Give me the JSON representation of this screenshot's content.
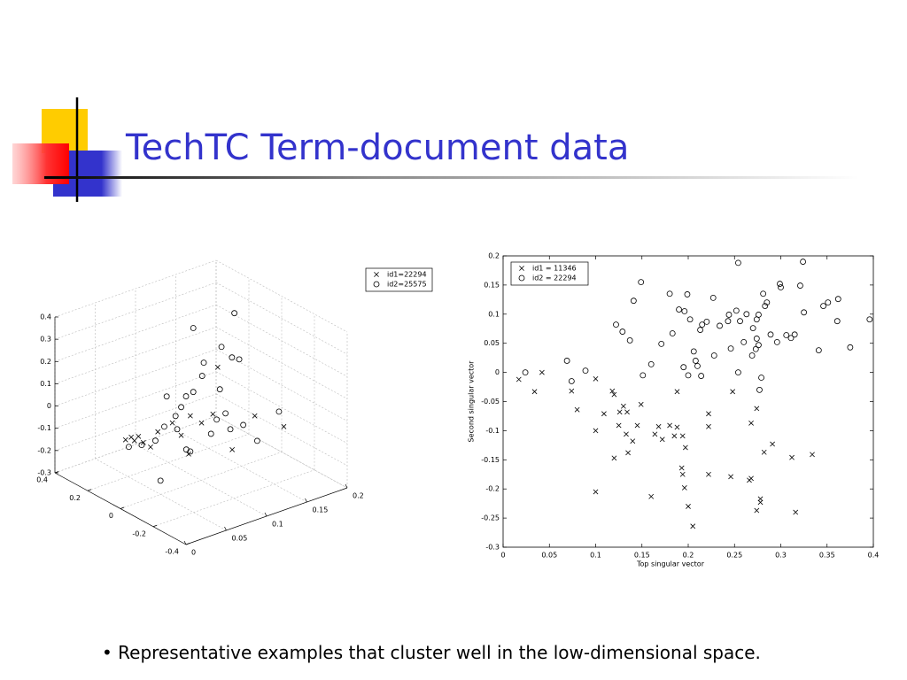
{
  "title": "TechTC Term-document data",
  "bullet": "• Representative examples that cluster well in the low-dimensional space.",
  "chart_data": [
    {
      "type": "scatter3d",
      "series": [
        {
          "name": "id1=22294",
          "marker": "x",
          "x": [
            0.2,
            0.2,
            0.2,
            0.2,
            0.2,
            0.2,
            0.2,
            0.2,
            0.2,
            -0.2,
            -0.2,
            -0.2,
            -0.2,
            -0.2,
            -0.2,
            -0.2,
            -0.2
          ],
          "y": [
            0.047,
            0.054,
            0.058,
            0.063,
            0.069,
            0.078,
            0.087,
            0.105,
            0.116,
            0.046,
            0.06,
            0.074,
            0.098,
            0.126,
            0.162,
            0.08,
            0.044
          ],
          "z": [
            -0.131,
            -0.128,
            -0.149,
            -0.136,
            -0.171,
            -0.203,
            -0.146,
            -0.129,
            -0.199,
            0.139,
            0.089,
            0.111,
            -0.079,
            0.037,
            -0.057,
            0.314,
            -0.03
          ]
        },
        {
          "name": "id2=25575",
          "marker": "o",
          "x": [
            0.2,
            0.2,
            0.2,
            0.2,
            0.2,
            0.2,
            0.2,
            -0.2,
            0.2,
            -0.2,
            -0.2,
            0.2,
            0.2,
            0.2,
            0.2,
            0.2,
            0.2,
            0.2,
            0.2,
            0.2,
            0.2,
            0.2,
            0.2,
            0.2,
            0.2,
            -0.2,
            -0.2,
            0.2
          ],
          "y": [
            0.051,
            0.067,
            0.084,
            0.095,
            0.109,
            0.116,
            0.098,
            0.009,
            0.111,
            0.041,
            0.046,
            0.131,
            0.142,
            0.122,
            0.144,
            0.153,
            0.16,
            0.166,
            0.171,
            0.177,
            0.179,
            0.188,
            0.182,
            0.164,
            0.193,
            0.129,
            0.156,
            0.131
          ],
          "z": [
            -0.168,
            -0.18,
            -0.182,
            -0.133,
            -0.103,
            -0.072,
            -0.001,
            -0.105,
            -0.165,
            -0.006,
            -0.021,
            0.264,
            0.035,
            -0.031,
            0.092,
            -0.239,
            -0.184,
            0.135,
            -0.17,
            -0.249,
            0.071,
            0.051,
            0.266,
            -0.053,
            -0.25,
            -0.079,
            0.018,
            -0.023
          ]
        }
      ],
      "xlim": [
        -0.4,
        0.4
      ],
      "xticks": [
        -0.4,
        -0.2,
        0,
        0.2,
        0.4
      ],
      "ylim": [
        0,
        0.2
      ],
      "yticks": [
        0,
        0.05,
        0.1,
        0.15,
        0.2
      ],
      "zlim": [
        -0.3,
        0.4
      ],
      "zticks": [
        -0.3,
        -0.2,
        -0.1,
        0,
        0.1,
        0.2,
        0.3,
        0.4
      ],
      "grid": true,
      "legend": "top-right"
    },
    {
      "type": "scatter",
      "x_label": "Top singular vector",
      "y_label": "Second singular vector",
      "series": [
        {
          "name": "id1 = 11346",
          "marker": "x",
          "x": [
            0.017,
            0.034,
            0.042,
            0.074,
            0.08,
            0.1,
            0.1,
            0.1,
            0.109,
            0.118,
            0.12,
            0.12,
            0.125,
            0.126,
            0.13,
            0.133,
            0.134,
            0.135,
            0.14,
            0.145,
            0.149,
            0.16,
            0.164,
            0.168,
            0.172,
            0.18,
            0.185,
            0.188,
            0.188,
            0.193,
            0.194,
            0.194,
            0.196,
            0.197,
            0.2,
            0.205,
            0.222,
            0.222,
            0.222,
            0.246,
            0.248,
            0.266,
            0.268,
            0.268,
            0.274,
            0.274,
            0.278,
            0.278,
            0.282,
            0.291,
            0.312,
            0.316,
            0.334
          ],
          "y": [
            -0.012,
            -0.033,
            0,
            -0.032,
            -0.064,
            -0.011,
            -0.1,
            -0.205,
            -0.071,
            -0.032,
            -0.038,
            -0.147,
            -0.091,
            -0.068,
            -0.058,
            -0.106,
            -0.068,
            -0.138,
            -0.118,
            -0.091,
            -0.055,
            -0.213,
            -0.106,
            -0.093,
            -0.115,
            -0.091,
            -0.109,
            -0.094,
            -0.033,
            -0.164,
            -0.109,
            -0.175,
            -0.198,
            -0.129,
            -0.23,
            -0.264,
            -0.071,
            -0.093,
            -0.175,
            -0.179,
            -0.033,
            -0.185,
            -0.182,
            -0.087,
            -0.062,
            -0.237,
            -0.223,
            -0.217,
            -0.137,
            -0.123,
            -0.146,
            -0.24,
            -0.141
          ]
        },
        {
          "name": "id2 = 22294",
          "marker": "o",
          "x": [
            0.024,
            0.069,
            0.074,
            0.089,
            0.122,
            0.129,
            0.137,
            0.141,
            0.149,
            0.151,
            0.16,
            0.171,
            0.18,
            0.183,
            0.19,
            0.195,
            0.196,
            0.199,
            0.2,
            0.202,
            0.206,
            0.208,
            0.21,
            0.213,
            0.214,
            0.215,
            0.22,
            0.227,
            0.228,
            0.234,
            0.243,
            0.244,
            0.246,
            0.252,
            0.254,
            0.254,
            0.256,
            0.26,
            0.263,
            0.269,
            0.27,
            0.273,
            0.274,
            0.274,
            0.276,
            0.276,
            0.277,
            0.279,
            0.281,
            0.283,
            0.285,
            0.289,
            0.296,
            0.299,
            0.3,
            0.306,
            0.311,
            0.315,
            0.321,
            0.324,
            0.325,
            0.341,
            0.346,
            0.351,
            0.361,
            0.362,
            0.375,
            0.396
          ],
          "y": [
            0,
            0.02,
            -0.015,
            0.003,
            0.082,
            0.07,
            0.055,
            0.123,
            0.155,
            -0.005,
            0.014,
            0.049,
            0.135,
            0.067,
            0.108,
            0.009,
            0.105,
            0.134,
            -0.005,
            0.091,
            0.036,
            0.02,
            0.011,
            0.073,
            -0.006,
            0.082,
            0.087,
            0.128,
            0.029,
            0.08,
            0.088,
            0.099,
            0.041,
            0.106,
            0.188,
            0,
            0.088,
            0.052,
            0.1,
            0.029,
            0.076,
            0.04,
            0.091,
            0.058,
            0.099,
            0.047,
            -0.03,
            -0.009,
            0.135,
            0.114,
            0.12,
            0.065,
            0.052,
            0.152,
            0.146,
            0.064,
            0.059,
            0.065,
            0.149,
            0.19,
            0.103,
            0.038,
            0.114,
            0.12,
            0.088,
            0.126,
            0.043,
            0.091
          ]
        }
      ],
      "xlim": [
        0,
        0.4
      ],
      "xticks": [
        0,
        0.05,
        0.1,
        0.15,
        0.2,
        0.25,
        0.3,
        0.35,
        0.4
      ],
      "ylim": [
        -0.3,
        0.2
      ],
      "yticks": [
        -0.3,
        -0.25,
        -0.2,
        -0.15,
        -0.1,
        -0.05,
        0,
        0.05,
        0.1,
        0.15,
        0.2
      ],
      "grid": false,
      "legend": "top-left"
    }
  ]
}
